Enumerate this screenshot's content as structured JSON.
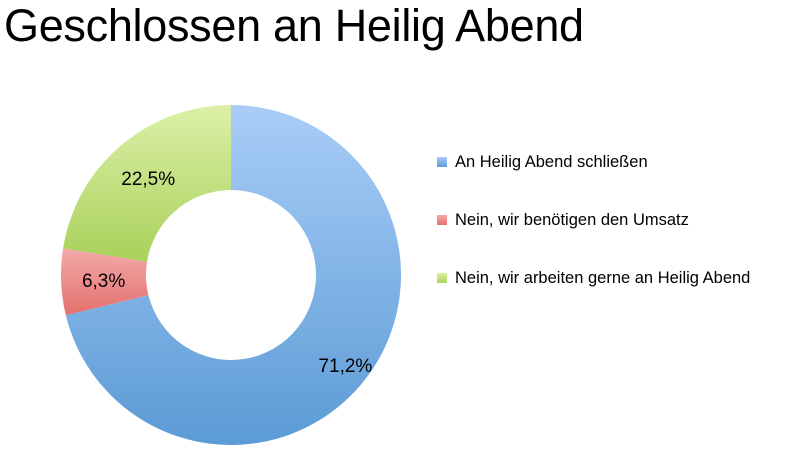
{
  "chart_data": {
    "type": "pie",
    "donut": true,
    "title": "Geschlossen an Heilig Abend",
    "slices": [
      {
        "name": "An Heilig Abend schließen",
        "value": 71.2,
        "label": "71,2%",
        "color": "#5b9bd5",
        "color_light": "#a9cdf7"
      },
      {
        "name": "Nein, wir benötigen den Umsatz",
        "value": 6.3,
        "label": "6,3%",
        "color": "#e5706d",
        "color_light": "#f2aaa9"
      },
      {
        "name": "Nein, wir arbeiten gerne an Heilig Abend",
        "value": 22.5,
        "label": "22,5%",
        "color": "#a9d15a",
        "color_light": "#dcf0a8"
      }
    ],
    "legend_position": "right"
  }
}
